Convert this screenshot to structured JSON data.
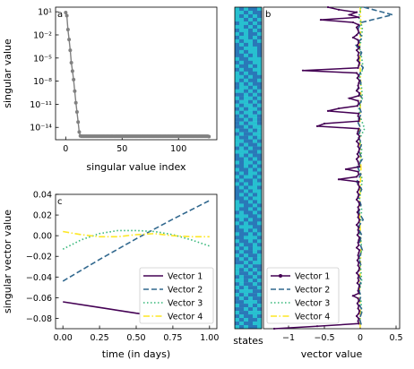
{
  "colors": {
    "sv_line": "#808080",
    "vector1": "#440154",
    "vector2": "#31688e",
    "vector3": "#35b779",
    "vector4": "#fde725",
    "states_a": "#2a78b8",
    "states_b": "#27c0d0"
  },
  "chart_data": [
    {
      "id": "a",
      "type": "scatter",
      "panel_label": "a",
      "xlabel": "singular value index",
      "ylabel": "singular value",
      "yscale": "log",
      "xlim": [
        -9,
        134
      ],
      "ylim_exp": [
        -15.6,
        1.6
      ],
      "x_ticks": [
        0,
        50,
        100
      ],
      "x_tick_labels": [
        "0",
        "50",
        "100"
      ],
      "y_ticks_exp": [
        1,
        -2,
        -5,
        -8,
        -11,
        -14
      ],
      "y_tick_labels": [
        "10¹",
        "10⁻²",
        "10⁻⁵",
        "10⁻⁸",
        "10⁻¹¹",
        "10⁻¹⁴"
      ],
      "series": [
        {
          "marker": "circle",
          "x": [
            0,
            1,
            2,
            3,
            4,
            5,
            6,
            7,
            8,
            9,
            10,
            11,
            12,
            13,
            14,
            15,
            16,
            17,
            18,
            19,
            20,
            21,
            22,
            23,
            24,
            25,
            26,
            27,
            28,
            29,
            30,
            31,
            32,
            33,
            34,
            35,
            36,
            37,
            38,
            39,
            40,
            41,
            42,
            43,
            44,
            45,
            46,
            47,
            48,
            49,
            50,
            51,
            52,
            53,
            54,
            55,
            56,
            57,
            58,
            59,
            60,
            61,
            62,
            63,
            64,
            65,
            66,
            67,
            68,
            69,
            70,
            71,
            72,
            73,
            74,
            75,
            76,
            77,
            78,
            79,
            80,
            81,
            82,
            83,
            84,
            85,
            86,
            87,
            88,
            89,
            90,
            91,
            92,
            93,
            94,
            95,
            96,
            97,
            98,
            99,
            100,
            101,
            102,
            103,
            104,
            105,
            106,
            107,
            108,
            109,
            110,
            111,
            112,
            113,
            114,
            115,
            116,
            117,
            118,
            119,
            120,
            121,
            122,
            123,
            124,
            125,
            126,
            127
          ],
          "log10_y": [
            0.9,
            0.5,
            -1.3,
            -2.6,
            -4.0,
            -5.6,
            -6.7,
            -7.8,
            -9.3,
            -10.8,
            -12.0,
            -13.3,
            -14.6,
            -15.1,
            -15.15,
            -15.15,
            -15.15,
            -15.15,
            -15.15,
            -15.15,
            -15.15,
            -15.15,
            -15.15,
            -15.15,
            -15.15,
            -15.15,
            -15.15,
            -15.15,
            -15.15,
            -15.15,
            -15.15,
            -15.15,
            -15.15,
            -15.15,
            -15.15,
            -15.15,
            -15.15,
            -15.15,
            -15.15,
            -15.15,
            -15.15,
            -15.15,
            -15.15,
            -15.15,
            -15.15,
            -15.15,
            -15.15,
            -15.15,
            -15.15,
            -15.15,
            -15.15,
            -15.15,
            -15.15,
            -15.15,
            -15.15,
            -15.15,
            -15.15,
            -15.15,
            -15.15,
            -15.15,
            -15.15,
            -15.15,
            -15.15,
            -15.15,
            -15.15,
            -15.15,
            -15.15,
            -15.15,
            -15.15,
            -15.15,
            -15.15,
            -15.15,
            -15.15,
            -15.15,
            -15.15,
            -15.15,
            -15.15,
            -15.15,
            -15.15,
            -15.15,
            -15.15,
            -15.15,
            -15.15,
            -15.15,
            -15.15,
            -15.15,
            -15.15,
            -15.15,
            -15.15,
            -15.15,
            -15.15,
            -15.15,
            -15.15,
            -15.15,
            -15.15,
            -15.15,
            -15.15,
            -15.15,
            -15.15,
            -15.15,
            -15.15,
            -15.15,
            -15.15,
            -15.15,
            -15.15,
            -15.15,
            -15.15,
            -15.15,
            -15.15,
            -15.15,
            -15.15,
            -15.15,
            -15.15,
            -15.15,
            -15.15,
            -15.15,
            -15.15,
            -15.15,
            -15.15,
            -15.15,
            -15.15,
            -15.15,
            -15.15,
            -15.15,
            -15.15,
            -15.15,
            -15.15,
            -15.2
          ]
        }
      ]
    },
    {
      "id": "c",
      "type": "line",
      "panel_label": "c",
      "xlabel": "time (in days)",
      "ylabel": "singular vector value",
      "xlim": [
        -0.05,
        1.05
      ],
      "ylim": [
        -0.09,
        0.04
      ],
      "x_ticks": [
        0,
        0.25,
        0.5,
        0.75,
        1
      ],
      "x_tick_labels": [
        "0.00",
        "0.25",
        "0.50",
        "0.75",
        "1.00"
      ],
      "y_ticks": [
        -0.08,
        -0.06,
        -0.04,
        -0.02,
        0.0,
        0.02,
        0.04
      ],
      "y_tick_labels": [
        "−0.08",
        "−0.06",
        "−0.04",
        "−0.02",
        "0.00",
        "0.02",
        "0.04"
      ],
      "legend_position": "lower-right",
      "series": [
        {
          "name": "Vector 1",
          "style": "solid",
          "color": "#440154",
          "x": [
            0,
            0.25,
            0.5,
            0.75,
            1
          ],
          "y": [
            -0.064,
            -0.0695,
            -0.075,
            -0.0795,
            -0.083
          ]
        },
        {
          "name": "Vector 2",
          "style": "dashed",
          "color": "#31688e",
          "x": [
            0,
            0.25,
            0.5,
            0.75,
            1
          ],
          "y": [
            -0.044,
            -0.023,
            -0.003,
            0.016,
            0.034
          ]
        },
        {
          "name": "Vector 3",
          "style": "dotted",
          "color": "#35b779",
          "x": [
            0,
            0.125,
            0.25,
            0.375,
            0.5,
            0.625,
            0.75,
            0.875,
            1
          ],
          "y": [
            -0.013,
            -0.004,
            0.002,
            0.005,
            0.005,
            0.004,
            0.001,
            -0.004,
            -0.01
          ]
        },
        {
          "name": "Vector 4",
          "style": "dashdot",
          "color": "#fde725",
          "x": [
            0,
            0.125,
            0.25,
            0.375,
            0.5,
            0.625,
            0.75,
            0.875,
            1
          ],
          "y": [
            0.004,
            0.001,
            -0.001,
            -0.001,
            0.001,
            0.002,
            0.0,
            -0.001,
            -0.001
          ]
        }
      ]
    },
    {
      "id": "b",
      "type": "line",
      "panel_label": "b",
      "xlabel": "vector value",
      "ylabel": "",
      "xlim": [
        -1.35,
        0.55
      ],
      "ylim": [
        0,
        127
      ],
      "x_ticks": [
        -1,
        -0.5,
        0,
        0.5
      ],
      "x_tick_labels": [
        "−1",
        "−0.5",
        "0",
        "0.5"
      ],
      "legend_position": "lower-left",
      "states_label": "states",
      "series": [
        {
          "name": "Vector 1",
          "style": "solid-marker",
          "color": "#440154",
          "index": [
            0,
            1,
            2,
            3,
            4,
            5,
            6,
            7,
            8,
            9,
            10,
            11,
            12,
            13,
            14,
            15,
            16,
            17,
            18,
            19,
            20,
            21,
            22,
            23,
            24,
            25,
            26,
            27,
            28,
            29,
            30,
            31,
            32,
            33,
            34,
            35,
            36,
            37,
            38,
            39,
            40,
            41,
            42,
            43,
            44,
            45,
            46,
            47,
            48,
            49,
            50,
            51,
            52,
            53,
            54,
            55,
            56,
            57,
            58,
            59,
            60,
            61,
            62,
            63,
            64,
            65,
            66,
            67,
            68,
            69,
            70,
            71,
            72,
            73,
            74,
            75,
            76,
            77,
            78,
            79,
            80,
            81,
            82,
            83,
            84,
            85,
            86,
            87,
            88,
            89,
            90,
            91,
            92,
            93,
            94,
            95,
            96,
            97,
            98,
            99,
            100,
            101,
            102,
            103,
            104,
            105,
            106,
            107,
            108,
            109,
            110,
            111,
            112,
            113,
            114,
            115,
            116,
            117,
            118,
            119,
            120,
            121,
            122,
            123,
            124,
            125,
            126,
            127
          ],
          "value": [
            -0.45,
            -0.3,
            -0.05,
            -0.15,
            -0.02,
            -0.55,
            -0.1,
            -0.02,
            -0.05,
            -0.03,
            -0.02,
            -0.05,
            -0.1,
            -0.03,
            -0.02,
            -0.04,
            -0.01,
            -0.05,
            -0.02,
            -0.03,
            -0.02,
            -0.04,
            -0.01,
            -0.02,
            -0.03,
            -0.8,
            -0.05,
            -0.02,
            -0.04,
            -0.01,
            -0.02,
            -0.03,
            -0.02,
            -0.05,
            -0.01,
            -0.02,
            -0.15,
            -0.03,
            -0.02,
            -0.04,
            -0.3,
            -0.45,
            -0.02,
            -0.03,
            -0.01,
            -0.02,
            -0.5,
            -0.6,
            -0.02,
            -0.03,
            -0.04,
            -0.01,
            -0.02,
            -0.05,
            -0.02,
            -0.03,
            -0.01,
            -0.02,
            -0.04,
            -0.02,
            -0.05,
            -0.03,
            -0.02,
            -0.01,
            -0.2,
            -0.03,
            -0.02,
            -0.05,
            -0.3,
            -0.02,
            -0.03,
            -0.01,
            -0.02,
            -0.04,
            -0.02,
            -0.03,
            -0.05,
            -0.02,
            -0.01,
            -0.03,
            -0.02,
            -0.04,
            -0.02,
            -0.03,
            -0.01,
            -0.02,
            -0.05,
            -0.02,
            -0.03,
            -0.02,
            -0.04,
            -0.01,
            -0.02,
            -0.03,
            -0.02,
            -0.05,
            -0.01,
            -0.02,
            -0.03,
            -0.02,
            -0.04,
            -0.02,
            -0.03,
            -0.01,
            -0.02,
            -0.05,
            -0.02,
            -0.03,
            -0.02,
            -0.04,
            -0.01,
            -0.02,
            -0.03,
            -0.02,
            -0.1,
            -0.03,
            -0.02,
            -0.04,
            -0.02,
            -0.03,
            -0.01,
            -0.02,
            -0.05,
            -0.02,
            -0.03,
            -0.02,
            -0.6,
            -1.2
          ]
        },
        {
          "name": "Vector 2",
          "style": "dashed",
          "color": "#31688e",
          "index": [
            0,
            3,
            6,
            9,
            12,
            15,
            18,
            21,
            24,
            27,
            30,
            33,
            36,
            39,
            42,
            45,
            48,
            51,
            54,
            57,
            60,
            63,
            66,
            69,
            72,
            75,
            78,
            81,
            84,
            87,
            90,
            93,
            96,
            99,
            102,
            105,
            108,
            111,
            114,
            117,
            120,
            123,
            126
          ],
          "value": [
            0.05,
            0.45,
            0.02,
            -0.04,
            0.03,
            -0.06,
            0.02,
            -0.03,
            0.04,
            -0.02,
            0.01,
            -0.05,
            0.03,
            -0.02,
            0.02,
            -0.04,
            0.01,
            -0.03,
            0.02,
            -0.02,
            0.03,
            -0.04,
            0.01,
            -0.05,
            0.02,
            -0.03,
            0.01,
            -0.02,
            0.04,
            -0.03,
            0.02,
            -0.01,
            0.03,
            -0.02,
            0.01,
            -0.04,
            0.02,
            -0.03,
            0.01,
            -0.02,
            0.03,
            -0.01,
            0.02
          ]
        },
        {
          "name": "Vector 3",
          "style": "dotted",
          "color": "#35b779",
          "index": [
            0,
            4,
            8,
            12,
            16,
            20,
            24,
            28,
            32,
            36,
            40,
            44,
            48,
            52,
            56,
            60,
            64,
            68,
            72,
            76,
            80,
            84,
            88,
            92,
            96,
            100,
            104,
            108,
            112,
            116,
            120,
            124
          ],
          "value": [
            0.01,
            -0.02,
            0.03,
            0.02,
            -0.01,
            0.02,
            0.04,
            -0.01,
            0.02,
            0.03,
            -0.02,
            0.01,
            0.06,
            -0.01,
            0.02,
            0.01,
            -0.02,
            0.03,
            0.01,
            -0.01,
            0.02,
            0.01,
            -0.02,
            0.01,
            0.02,
            -0.01,
            0.01,
            0.02,
            -0.01,
            0.01,
            0.02,
            -0.01
          ]
        },
        {
          "name": "Vector 4",
          "style": "dashdot",
          "color": "#fde725",
          "index": [
            0,
            8,
            16,
            24,
            32,
            40,
            48,
            56,
            64,
            72,
            80,
            88,
            96,
            104,
            112,
            120,
            127
          ],
          "value": [
            0.0,
            0.01,
            -0.01,
            0.0,
            0.01,
            0.0,
            -0.01,
            0.0,
            0.01,
            0.0,
            -0.01,
            0.0,
            0.01,
            0.0,
            -0.01,
            0.0,
            0.0
          ]
        }
      ]
    }
  ]
}
